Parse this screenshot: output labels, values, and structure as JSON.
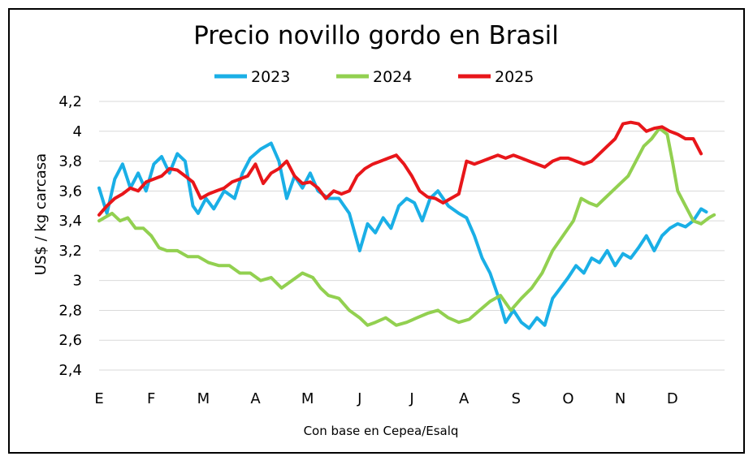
{
  "chart_data": {
    "type": "line",
    "title": "Precio novillo gordo en Brasil",
    "ylabel": "US$ / kg carcasa",
    "xlabel": "",
    "source": "Con base en Cepea/Esalq",
    "ylim": [
      2.4,
      4.2
    ],
    "yticks": [
      2.4,
      2.6,
      2.8,
      3,
      3.2,
      3.4,
      3.6,
      3.8,
      4,
      4.2
    ],
    "ytick_labels": [
      "2,4",
      "2,6",
      "2,8",
      "3",
      "3,2",
      "3,4",
      "3,6",
      "3,8",
      "4",
      "4,2"
    ],
    "grid": true,
    "legend_position": "top",
    "xlim": [
      0,
      12
    ],
    "categories": [
      "E",
      "F",
      "M",
      "A",
      "M",
      "J",
      "J",
      "A",
      "S",
      "O",
      "N",
      "D"
    ],
    "series": [
      {
        "name": "2023",
        "color": "#1AAFE6",
        "x": [
          0,
          0.15,
          0.3,
          0.45,
          0.6,
          0.75,
          0.9,
          1.05,
          1.2,
          1.35,
          1.5,
          1.65,
          1.8,
          1.9,
          2.05,
          2.2,
          2.4,
          2.6,
          2.75,
          2.9,
          3.1,
          3.3,
          3.45,
          3.6,
          3.75,
          3.9,
          4.05,
          4.2,
          4.4,
          4.6,
          4.8,
          5.0,
          5.15,
          5.3,
          5.45,
          5.6,
          5.75,
          5.9,
          6.05,
          6.2,
          6.35,
          6.5,
          6.7,
          6.9,
          7.05,
          7.2,
          7.35,
          7.5,
          7.65,
          7.8,
          7.95,
          8.1,
          8.25,
          8.4,
          8.55,
          8.7,
          8.85,
          9.0,
          9.15,
          9.3,
          9.45,
          9.6,
          9.75,
          9.9,
          10.05,
          10.2,
          10.35,
          10.5,
          10.65,
          10.8,
          10.95,
          11.1,
          11.25,
          11.4,
          11.55,
          11.65
        ],
        "values": [
          3.62,
          3.45,
          3.68,
          3.78,
          3.62,
          3.72,
          3.6,
          3.78,
          3.83,
          3.72,
          3.85,
          3.8,
          3.5,
          3.45,
          3.55,
          3.48,
          3.6,
          3.55,
          3.72,
          3.82,
          3.88,
          3.92,
          3.8,
          3.55,
          3.7,
          3.62,
          3.72,
          3.6,
          3.55,
          3.55,
          3.45,
          3.2,
          3.38,
          3.32,
          3.42,
          3.35,
          3.5,
          3.55,
          3.52,
          3.4,
          3.55,
          3.6,
          3.5,
          3.45,
          3.42,
          3.3,
          3.15,
          3.05,
          2.9,
          2.72,
          2.8,
          2.72,
          2.68,
          2.75,
          2.7,
          2.88,
          2.95,
          3.02,
          3.1,
          3.05,
          3.15,
          3.12,
          3.2,
          3.1,
          3.18,
          3.15,
          3.22,
          3.3,
          3.2,
          3.3,
          3.35,
          3.38,
          3.36,
          3.4,
          3.48,
          3.46
        ]
      },
      {
        "name": "2024",
        "color": "#92D050",
        "x": [
          0,
          0.1,
          0.25,
          0.4,
          0.55,
          0.7,
          0.85,
          1.0,
          1.15,
          1.3,
          1.5,
          1.7,
          1.9,
          2.1,
          2.3,
          2.5,
          2.7,
          2.9,
          3.1,
          3.3,
          3.5,
          3.7,
          3.9,
          4.1,
          4.25,
          4.4,
          4.6,
          4.8,
          5.0,
          5.15,
          5.3,
          5.5,
          5.7,
          5.9,
          6.1,
          6.3,
          6.5,
          6.7,
          6.9,
          7.1,
          7.3,
          7.5,
          7.7,
          7.9,
          8.1,
          8.3,
          8.5,
          8.7,
          8.9,
          9.1,
          9.25,
          9.4,
          9.55,
          9.7,
          9.85,
          10.0,
          10.15,
          10.3,
          10.45,
          10.6,
          10.75,
          10.9,
          11.0,
          11.1,
          11.25,
          11.4,
          11.55,
          11.7,
          11.8
        ],
        "values": [
          3.4,
          3.42,
          3.45,
          3.4,
          3.42,
          3.35,
          3.35,
          3.3,
          3.22,
          3.2,
          3.2,
          3.16,
          3.16,
          3.12,
          3.1,
          3.1,
          3.05,
          3.05,
          3.0,
          3.02,
          2.95,
          3.0,
          3.05,
          3.02,
          2.95,
          2.9,
          2.88,
          2.8,
          2.75,
          2.7,
          2.72,
          2.75,
          2.7,
          2.72,
          2.75,
          2.78,
          2.8,
          2.75,
          2.72,
          2.74,
          2.8,
          2.86,
          2.9,
          2.8,
          2.88,
          2.95,
          3.05,
          3.2,
          3.3,
          3.4,
          3.55,
          3.52,
          3.5,
          3.55,
          3.6,
          3.65,
          3.7,
          3.8,
          3.9,
          3.95,
          4.02,
          3.98,
          3.8,
          3.6,
          3.5,
          3.4,
          3.38,
          3.42,
          3.44
        ]
      },
      {
        "name": "2025",
        "color": "#E8161A",
        "x": [
          0,
          0.15,
          0.3,
          0.45,
          0.6,
          0.75,
          0.9,
          1.05,
          1.2,
          1.35,
          1.5,
          1.65,
          1.8,
          1.95,
          2.1,
          2.25,
          2.4,
          2.55,
          2.7,
          2.85,
          3.0,
          3.15,
          3.3,
          3.45,
          3.6,
          3.75,
          3.9,
          4.05,
          4.2,
          4.35,
          4.5,
          4.65,
          4.8,
          4.95,
          5.1,
          5.25,
          5.4,
          5.55,
          5.7,
          5.85,
          6.0,
          6.15,
          6.3,
          6.45,
          6.6,
          6.75,
          6.9,
          7.05,
          7.2,
          7.35,
          7.5,
          7.65,
          7.8,
          7.95,
          8.1,
          8.25,
          8.4,
          8.55,
          8.7,
          8.85,
          9.0,
          9.15,
          9.3,
          9.45,
          9.6,
          9.75,
          9.9,
          10.05,
          10.2,
          10.35,
          10.5,
          10.65,
          10.8,
          10.95,
          11.1,
          11.25,
          11.4,
          11.55
        ],
        "values": [
          3.44,
          3.5,
          3.55,
          3.58,
          3.62,
          3.6,
          3.66,
          3.68,
          3.7,
          3.75,
          3.74,
          3.7,
          3.66,
          3.55,
          3.58,
          3.6,
          3.62,
          3.66,
          3.68,
          3.7,
          3.78,
          3.65,
          3.72,
          3.75,
          3.8,
          3.7,
          3.65,
          3.66,
          3.62,
          3.55,
          3.6,
          3.58,
          3.6,
          3.7,
          3.75,
          3.78,
          3.8,
          3.82,
          3.84,
          3.78,
          3.7,
          3.6,
          3.56,
          3.55,
          3.52,
          3.55,
          3.58,
          3.8,
          3.78,
          3.8,
          3.82,
          3.84,
          3.82,
          3.84,
          3.82,
          3.8,
          3.78,
          3.76,
          3.8,
          3.82,
          3.82,
          3.8,
          3.78,
          3.8,
          3.85,
          3.9,
          3.95,
          4.05,
          4.06,
          4.05,
          4.0,
          4.02,
          4.03,
          4.0,
          3.98,
          3.95,
          3.95,
          3.85
        ]
      }
    ]
  }
}
